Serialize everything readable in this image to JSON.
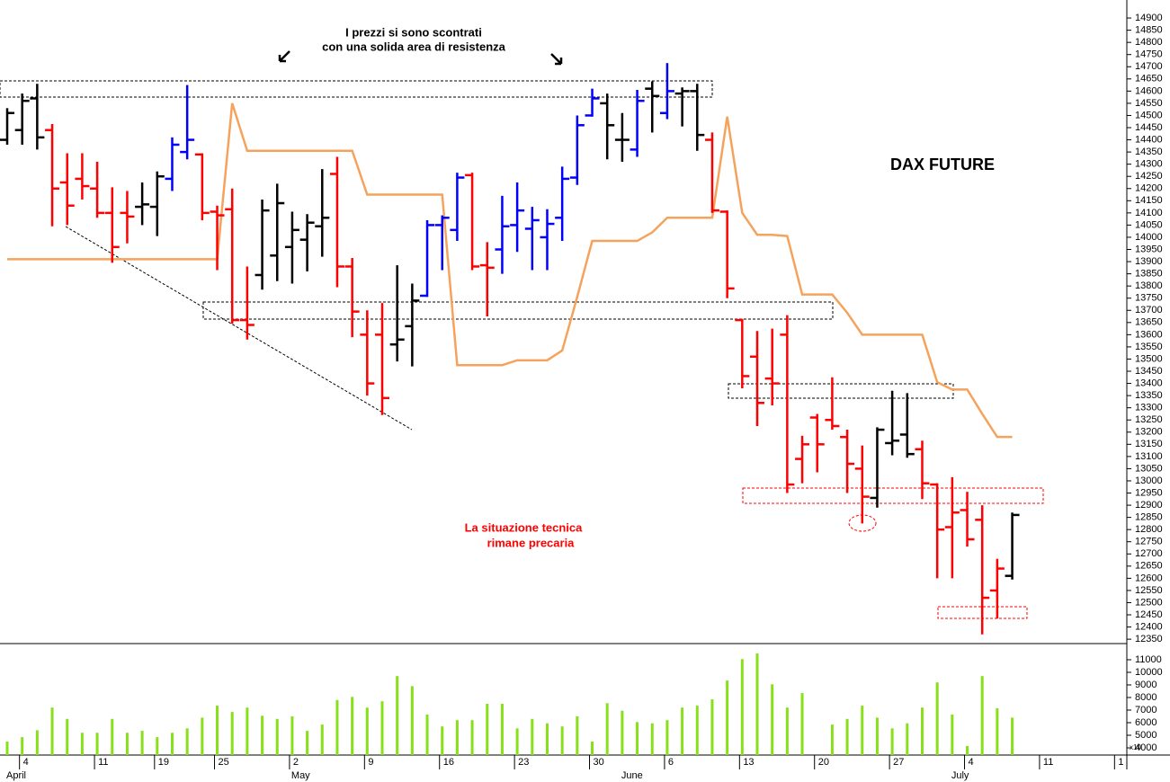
{
  "chart_data": {
    "type": "ohlc",
    "title": "DAX FUTURE",
    "annotations": [
      "I prezzi si sono scontrati",
      "con una solida area di resistenza",
      "La situazione tecnica",
      "rimane precaria"
    ],
    "categories": [
      null,
      "4",
      null,
      null,
      null,
      null,
      "11",
      null,
      null,
      null,
      "19",
      null,
      null,
      null,
      "25",
      null,
      null,
      null,
      null,
      "2",
      null,
      null,
      null,
      null,
      "9",
      null,
      null,
      null,
      null,
      "16",
      null,
      null,
      null,
      null,
      "23",
      null,
      null,
      null,
      null,
      "30",
      null,
      null,
      null,
      null,
      "6",
      null,
      null,
      null,
      null,
      "13",
      null,
      null,
      null,
      null,
      "20",
      null,
      null,
      null,
      null,
      "27",
      null,
      null,
      null,
      null,
      "4",
      null,
      null,
      null,
      null,
      "11",
      null,
      null,
      null,
      null,
      "1"
    ],
    "months": [
      {
        "label": "April",
        "category": 0
      },
      {
        "label": "May",
        "category": 19
      },
      {
        "label": "June",
        "category": 41
      },
      {
        "label": "July",
        "category": 63
      }
    ],
    "ohlc": {
      "open": [
        14400,
        14440,
        14570,
        14440,
        14225,
        14240,
        14200,
        14100,
        14100,
        14125,
        14125,
        14240,
        14350,
        14340,
        14105,
        14115,
        13660,
        13845,
        13925,
        13960,
        13990,
        14045,
        14260,
        13880,
        13600,
        13600,
        13560,
        13635,
        13760,
        14050,
        14030,
        14255,
        13885,
        13950,
        14050,
        14035,
        14000,
        14080,
        14245,
        14500,
        14550,
        14400,
        14360,
        14610,
        14510,
        14590,
        14600,
        14400,
        14105,
        13660,
        13510,
        13420,
        13600,
        13090,
        13260,
        13250,
        13180,
        13050,
        12930,
        13155,
        13190,
        13130,
        12985,
        12810,
        12880,
        12840,
        12550,
        12610,
        null,
        null,
        null,
        null,
        null,
        null,
        null
      ],
      "high": [
        14530,
        14590,
        14630,
        14465,
        14345,
        14345,
        14310,
        14205,
        14190,
        14225,
        14270,
        14410,
        14625,
        14345,
        14130,
        14200,
        13880,
        14155,
        14220,
        14105,
        14095,
        14280,
        14330,
        13915,
        13700,
        13730,
        13885,
        13810,
        14070,
        14090,
        14265,
        14265,
        13980,
        14170,
        14225,
        14125,
        14115,
        14290,
        14500,
        14610,
        14590,
        14510,
        14605,
        14640,
        14715,
        14615,
        14630,
        14430,
        14110,
        13665,
        13615,
        13625,
        13680,
        13185,
        13275,
        13425,
        13210,
        13145,
        13220,
        13370,
        13360,
        13165,
        12990,
        13015,
        12955,
        12900,
        12680,
        12870,
        null,
        null,
        null,
        null,
        null,
        null,
        null
      ],
      "low": [
        14380,
        14380,
        14360,
        14045,
        14050,
        14155,
        14080,
        13895,
        13975,
        14050,
        14005,
        14190,
        14320,
        14070,
        13865,
        13645,
        13580,
        13785,
        13820,
        13810,
        13860,
        13920,
        13795,
        13590,
        13350,
        13270,
        13490,
        13470,
        13755,
        13865,
        13985,
        13865,
        13675,
        13850,
        13940,
        13865,
        13865,
        13985,
        14215,
        14495,
        14320,
        14310,
        14330,
        14430,
        14485,
        14455,
        14355,
        14100,
        13750,
        13380,
        13225,
        13310,
        12950,
        12990,
        13035,
        13210,
        12950,
        12825,
        12890,
        13105,
        13095,
        12925,
        12600,
        12600,
        12730,
        12370,
        12435,
        12595,
        null,
        null,
        null,
        null,
        null,
        null,
        null
      ],
      "close": [
        14510,
        14560,
        14410,
        14200,
        14130,
        14210,
        14100,
        13960,
        14085,
        14135,
        14250,
        14380,
        14400,
        14100,
        14090,
        13660,
        13640,
        14110,
        14140,
        14030,
        14060,
        14080,
        13880,
        13695,
        13400,
        13340,
        13580,
        13740,
        14050,
        14080,
        14245,
        13880,
        13875,
        14045,
        14110,
        14070,
        14055,
        14240,
        14460,
        14570,
        14460,
        14400,
        14560,
        14580,
        14600,
        14600,
        14420,
        14110,
        13790,
        13430,
        13320,
        13400,
        12985,
        13150,
        13150,
        13225,
        13070,
        12935,
        13210,
        13165,
        13110,
        12990,
        12800,
        12870,
        12760,
        12520,
        12640,
        12860,
        null,
        null,
        null,
        null,
        null,
        null,
        null
      ],
      "colors": [
        "#000000",
        "#000000",
        "#000000",
        "#ff0000",
        "#ff0000",
        "#ff0000",
        "#ff0000",
        "#ff0000",
        "#ff0000",
        "#000000",
        "#000000",
        "#0000ff",
        "#0000ff",
        "#ff0000",
        "#ff0000",
        "#ff0000",
        "#ff0000",
        "#000000",
        "#000000",
        "#000000",
        "#000000",
        "#000000",
        "#ff0000",
        "#ff0000",
        "#ff0000",
        "#ff0000",
        "#000000",
        "#000000",
        "#0000ff",
        "#0000ff",
        "#0000ff",
        "#ff0000",
        "#ff0000",
        "#0000ff",
        "#0000ff",
        "#0000ff",
        "#0000ff",
        "#0000ff",
        "#0000ff",
        "#0000ff",
        "#000000",
        "#000000",
        "#0000ff",
        "#000000",
        "#0000ff",
        "#000000",
        "#000000",
        "#ff0000",
        "#ff0000",
        "#ff0000",
        "#ff0000",
        "#ff0000",
        "#ff0000",
        "#ff0000",
        "#ff0000",
        "#ff0000",
        "#ff0000",
        "#ff0000",
        "#000000",
        "#000000",
        "#000000",
        "#ff0000",
        "#ff0000",
        "#ff0000",
        "#ff0000",
        "#ff0000",
        "#ff0000",
        "#000000",
        null,
        null,
        null,
        null,
        null,
        null,
        null
      ]
    },
    "line": {
      "color": "#f5a35c",
      "values": [
        13910,
        13910,
        13910,
        13910,
        13910,
        13910,
        13910,
        13910,
        13910,
        13910,
        13910,
        13910,
        13910,
        13910,
        13910,
        14550,
        14355,
        14355,
        14355,
        14355,
        14355,
        14355,
        14355,
        14355,
        14175,
        14175,
        14175,
        14175,
        14175,
        14175,
        13475,
        13475,
        13475,
        13475,
        13495,
        13495,
        13495,
        13535,
        13755,
        13985,
        13985,
        13985,
        13985,
        14020,
        14080,
        14080,
        14080,
        14080,
        14495,
        14100,
        14010,
        14010,
        14005,
        13765,
        13765,
        13765,
        13690,
        13600,
        13600,
        13600,
        13600,
        13600,
        13405,
        13375,
        13375,
        13275,
        13180,
        13180,
        null,
        null,
        null,
        null,
        null,
        null,
        null
      ]
    },
    "volume": {
      "color": "#88e01a",
      "axis": "y2",
      "values": [
        4500,
        4850,
        5400,
        7200,
        6300,
        5200,
        5200,
        6300,
        5200,
        5350,
        4850,
        5200,
        5550,
        6400,
        7350,
        6850,
        7200,
        6550,
        6300,
        6500,
        5350,
        5850,
        7800,
        8050,
        7200,
        7700,
        9700,
        8900,
        6650,
        5700,
        6200,
        6200,
        7500,
        7500,
        5550,
        6300,
        5950,
        5700,
        6500,
        4500,
        7550,
        6950,
        6050,
        5950,
        6200,
        7200,
        7350,
        7850,
        9350,
        11050,
        11500,
        9050,
        7200,
        8350,
        null,
        5850,
        6300,
        7350,
        6400,
        5550,
        5950,
        7200,
        9200,
        6650,
        4150,
        9700,
        7150,
        6400,
        null,
        null,
        null,
        null,
        null,
        null,
        null
      ]
    },
    "ylim": [
      12332,
      14974
    ],
    "yticks": [
      12350,
      12400,
      12450,
      12500,
      12550,
      12600,
      12650,
      12700,
      12750,
      12800,
      12850,
      12900,
      12950,
      13000,
      13050,
      13100,
      13150,
      13200,
      13250,
      13300,
      13350,
      13400,
      13450,
      13500,
      13550,
      13600,
      13650,
      13700,
      13750,
      13800,
      13850,
      13900,
      13950,
      14000,
      14050,
      14100,
      14150,
      14200,
      14250,
      14300,
      14350,
      14400,
      14450,
      14500,
      14550,
      14600,
      14650,
      14700,
      14750,
      14800,
      14850,
      14900
    ],
    "y2lim": [
      3430,
      12140
    ],
    "y2ticks": [
      4000,
      5000,
      6000,
      7000,
      8000,
      9000,
      10000,
      11000
    ],
    "y2_note": "x10"
  }
}
